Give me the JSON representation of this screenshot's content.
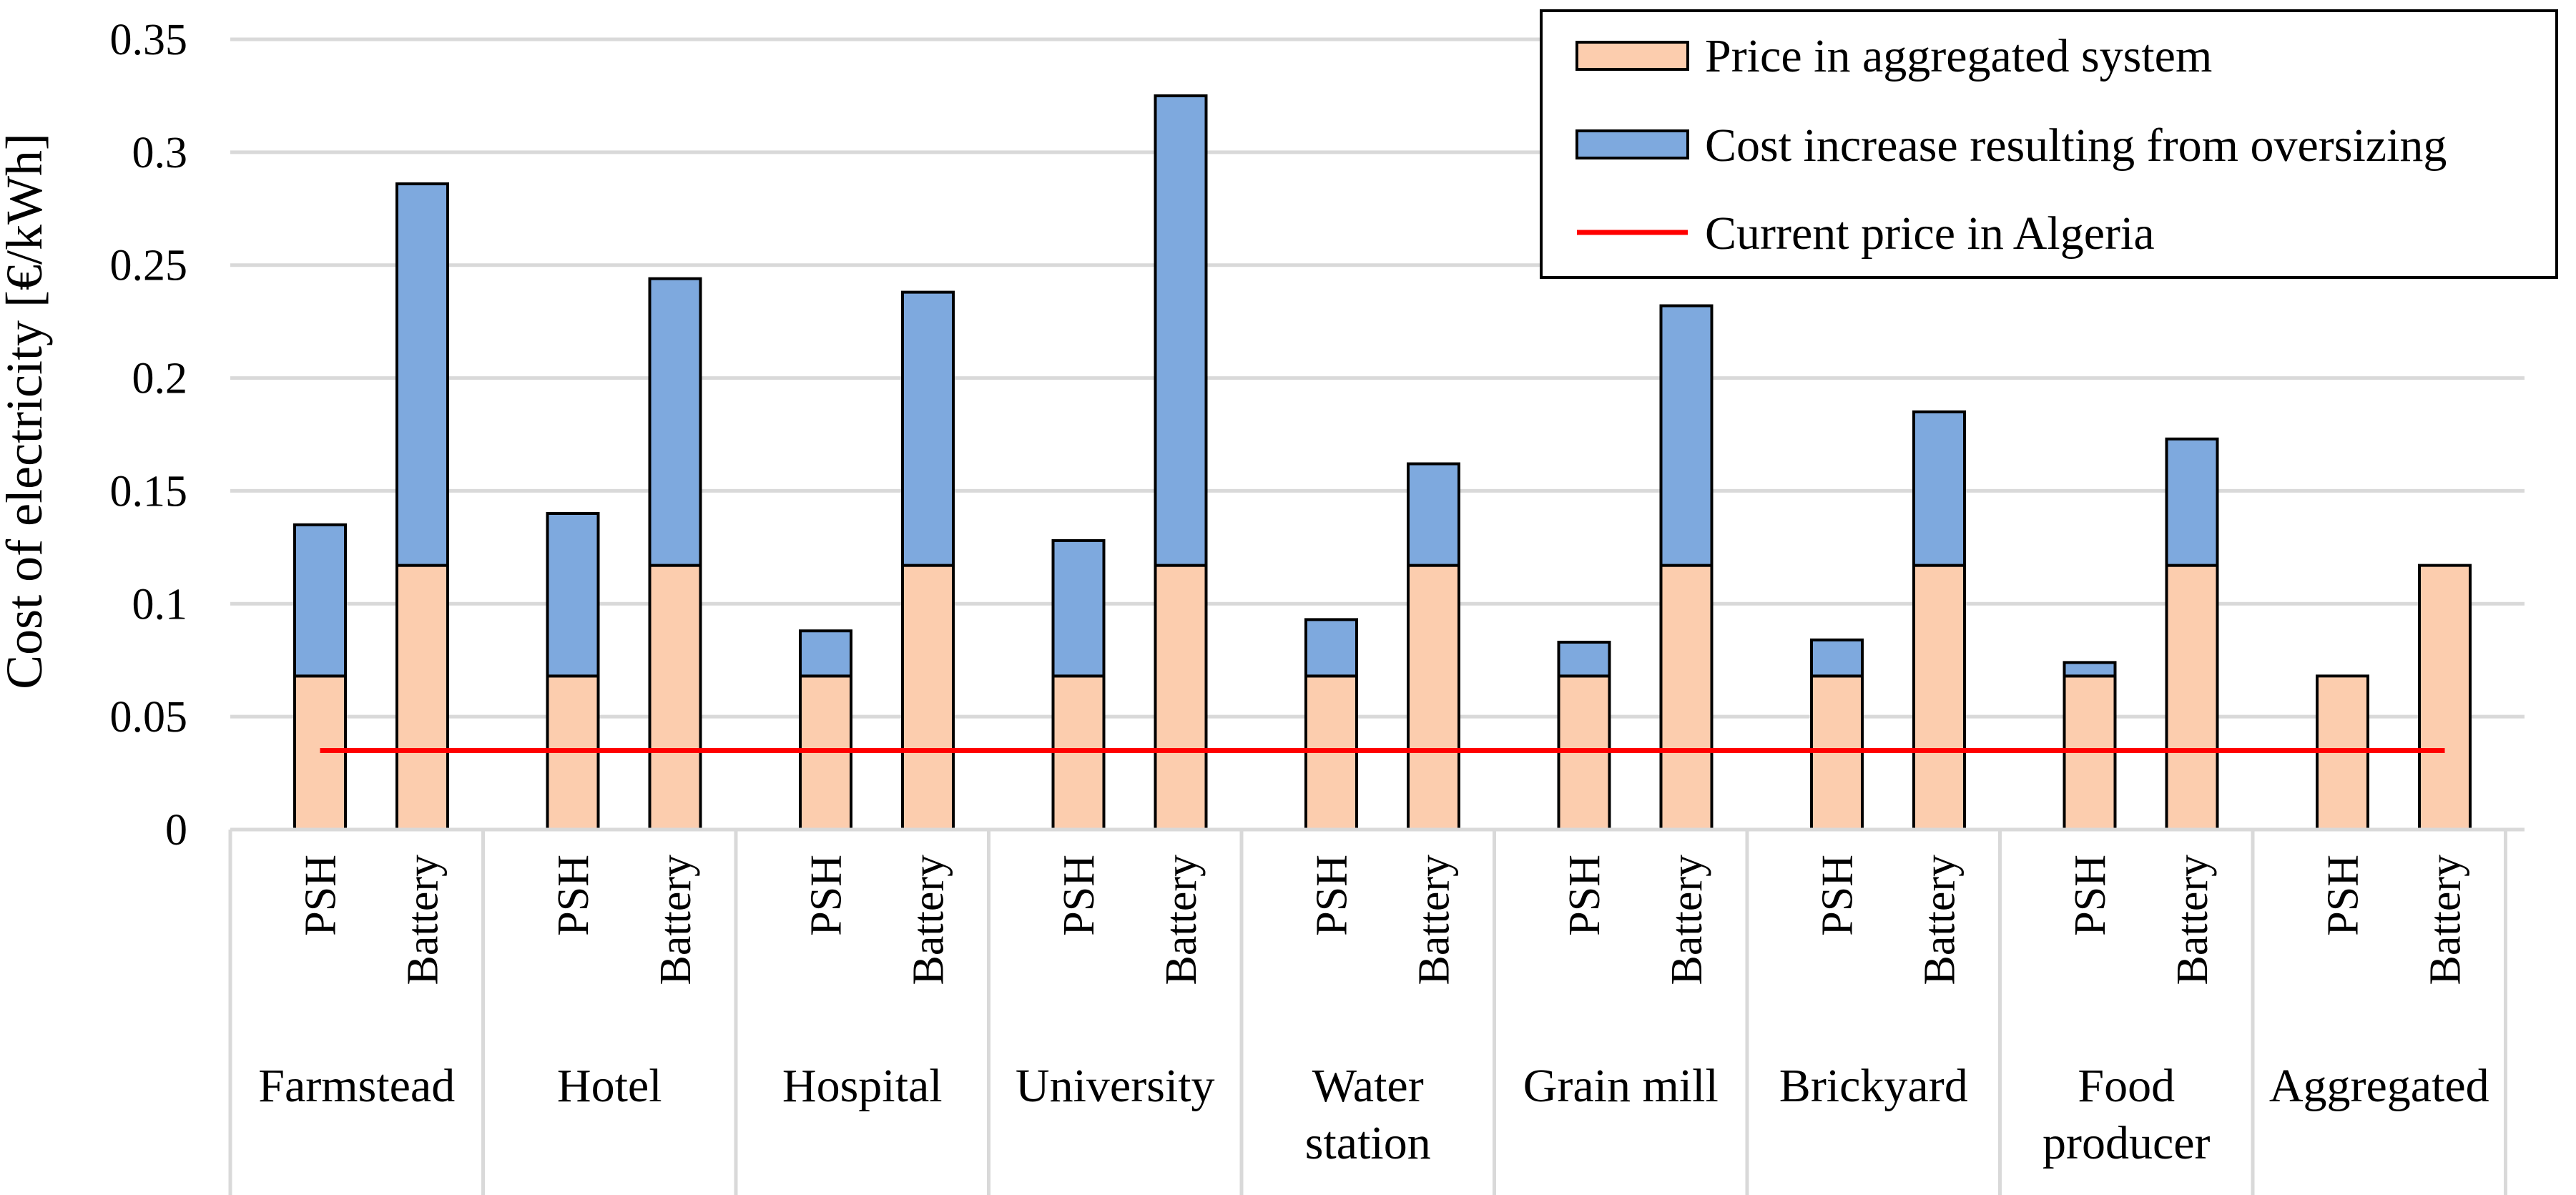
{
  "chart_data": {
    "type": "bar",
    "stacked": true,
    "ylabel": "Cost of electricity [€/kWh]",
    "ylim": [
      0,
      0.35
    ],
    "yticks": [
      "0",
      "0.05",
      "0.1",
      "0.15",
      "0.2",
      "0.25",
      "0.3",
      "0.35"
    ],
    "grid": true,
    "legend_position": "top-right",
    "groups": [
      {
        "label": [
          "Farmstead"
        ],
        "categories": [
          "PSH",
          "Battery"
        ]
      },
      {
        "label": [
          "Hotel"
        ],
        "categories": [
          "PSH",
          "Battery"
        ]
      },
      {
        "label": [
          "Hospital"
        ],
        "categories": [
          "PSH",
          "Battery"
        ]
      },
      {
        "label": [
          "University"
        ],
        "categories": [
          "PSH",
          "Battery"
        ]
      },
      {
        "label": [
          "Water",
          "station"
        ],
        "categories": [
          "PSH",
          "Battery"
        ]
      },
      {
        "label": [
          "Grain mill"
        ],
        "categories": [
          "PSH",
          "Battery"
        ]
      },
      {
        "label": [
          "Brickyard"
        ],
        "categories": [
          "PSH",
          "Battery"
        ]
      },
      {
        "label": [
          "Food",
          "producer"
        ],
        "categories": [
          "PSH",
          "Battery"
        ]
      },
      {
        "label": [
          "Aggregated"
        ],
        "categories": [
          "PSH",
          "Battery"
        ]
      }
    ],
    "series": [
      {
        "name": "Price in aggregated system",
        "color": "#FCCDAE",
        "values": [
          0.068,
          0.117,
          0.068,
          0.117,
          0.068,
          0.117,
          0.068,
          0.117,
          0.068,
          0.117,
          0.068,
          0.117,
          0.068,
          0.117,
          0.068,
          0.117,
          0.068,
          0.117
        ]
      },
      {
        "name": "Cost increase resulting from oversizing",
        "color": "#7EA9DE",
        "values": [
          0.067,
          0.169,
          0.072,
          0.127,
          0.02,
          0.121,
          0.06,
          0.208,
          0.025,
          0.045,
          0.015,
          0.115,
          0.016,
          0.068,
          0.006,
          0.056,
          0,
          0
        ]
      }
    ],
    "reference_line": {
      "name": "Current price in Algeria",
      "color": "#FF0000",
      "value": 0.035
    }
  }
}
